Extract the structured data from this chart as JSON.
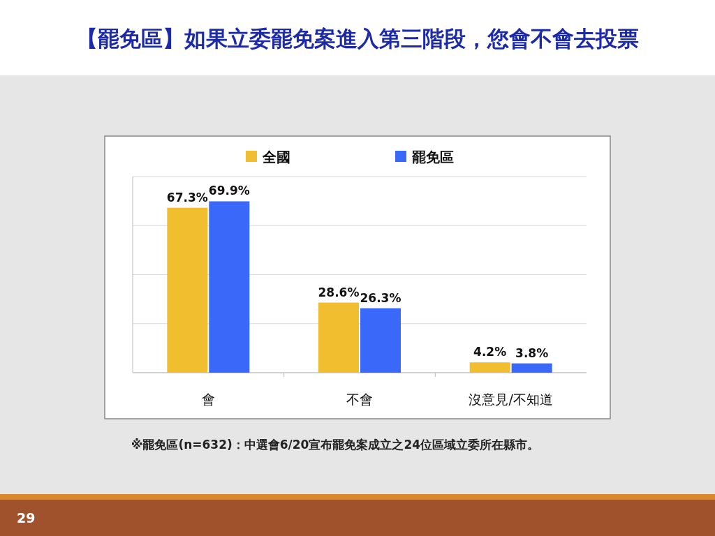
{
  "chart_data": {
    "type": "bar",
    "title": "【罷免區】如果立委罷免案進入第三階段，您會不會去投票",
    "categories": [
      "會",
      "不會",
      "沒意見/不知道"
    ],
    "series": [
      {
        "name": "全國",
        "color": "#f0be2e",
        "values": [
          67.3,
          28.6,
          4.2
        ],
        "value_labels": [
          "67.3%",
          "28.6%",
          "4.2%"
        ]
      },
      {
        "name": "罷免區",
        "color": "#3a68f8",
        "values": [
          69.9,
          26.3,
          3.8
        ],
        "value_labels": [
          "69.9%",
          "26.3%",
          "3.8%"
        ]
      }
    ],
    "ylim": [
      0,
      80
    ],
    "yticks": [
      {
        "value": 0,
        "label": null
      },
      {
        "value": 20,
        "label": null
      },
      {
        "value": 40,
        "label": null
      },
      {
        "value": 60,
        "label": null
      },
      {
        "value": 80,
        "label": null
      }
    ],
    "tick_labels": "x",
    "grid": "y",
    "legend": "top",
    "annotations": [
      "※罷免區(n=632)：中選會6/20宣布罷免案成立之24位區域立委所在縣市。",
      "29"
    ]
  }
}
